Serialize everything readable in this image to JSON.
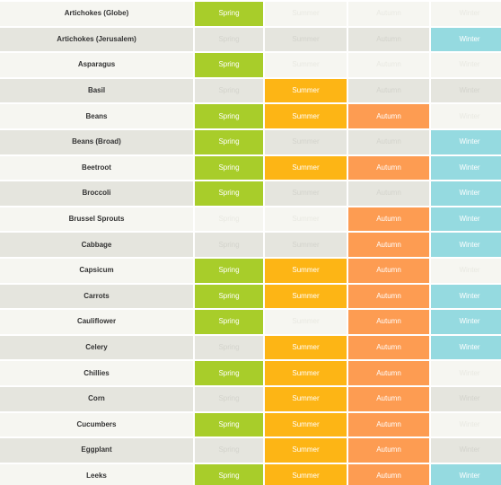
{
  "season_labels": [
    "Spring",
    "Summer",
    "Autumn",
    "Winter"
  ],
  "colors": {
    "spring": "#a8cd2a",
    "summer": "#fdb515",
    "autumn": "#fd9c52",
    "winter": "#95dae0",
    "row_light": "#f6f6f1",
    "row_dark": "#e5e5de"
  },
  "rows": [
    {
      "name": "Artichokes (Globe)",
      "seasons": [
        true,
        false,
        false,
        false
      ]
    },
    {
      "name": "Artichokes (Jerusalem)",
      "seasons": [
        false,
        false,
        false,
        true
      ]
    },
    {
      "name": "Asparagus",
      "seasons": [
        true,
        false,
        false,
        false
      ]
    },
    {
      "name": "Basil",
      "seasons": [
        false,
        true,
        false,
        false
      ]
    },
    {
      "name": "Beans",
      "seasons": [
        true,
        true,
        true,
        false
      ]
    },
    {
      "name": "Beans (Broad)",
      "seasons": [
        true,
        false,
        false,
        true
      ]
    },
    {
      "name": "Beetroot",
      "seasons": [
        true,
        true,
        true,
        true
      ]
    },
    {
      "name": "Broccoli",
      "seasons": [
        true,
        false,
        false,
        true
      ]
    },
    {
      "name": "Brussel Sprouts",
      "seasons": [
        false,
        false,
        true,
        true
      ]
    },
    {
      "name": "Cabbage",
      "seasons": [
        false,
        false,
        true,
        true
      ]
    },
    {
      "name": "Capsicum",
      "seasons": [
        true,
        true,
        true,
        false
      ]
    },
    {
      "name": "Carrots",
      "seasons": [
        true,
        true,
        true,
        true
      ]
    },
    {
      "name": "Cauliflower",
      "seasons": [
        true,
        false,
        true,
        true
      ]
    },
    {
      "name": "Celery",
      "seasons": [
        false,
        true,
        true,
        true
      ]
    },
    {
      "name": "Chillies",
      "seasons": [
        true,
        true,
        true,
        false
      ]
    },
    {
      "name": "Corn",
      "seasons": [
        false,
        true,
        true,
        false
      ]
    },
    {
      "name": "Cucumbers",
      "seasons": [
        true,
        true,
        true,
        false
      ]
    },
    {
      "name": "Eggplant",
      "seasons": [
        false,
        true,
        true,
        false
      ]
    },
    {
      "name": "Leeks",
      "seasons": [
        true,
        true,
        true,
        true
      ]
    }
  ]
}
